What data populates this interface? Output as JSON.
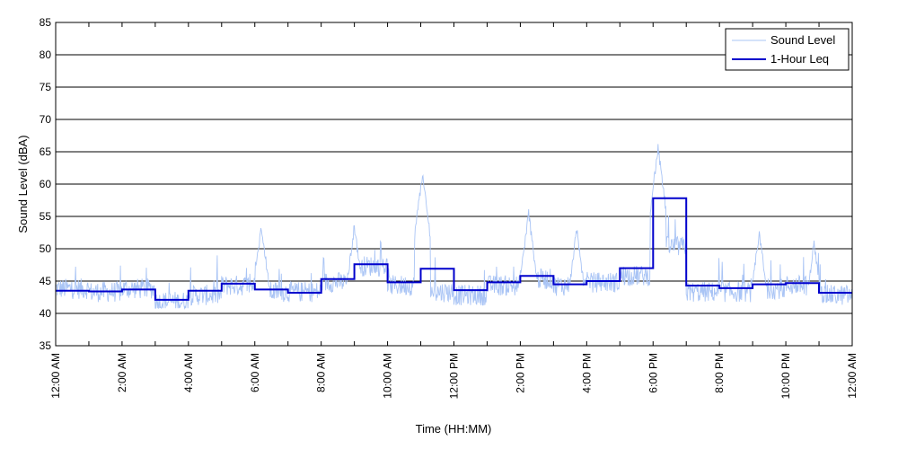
{
  "chart_data": {
    "type": "line",
    "xlabel": "Time (HH:MM)",
    "ylabel": "Sound Level (dBA)",
    "ylim": [
      35,
      85
    ],
    "y_ticks": [
      35,
      40,
      45,
      50,
      55,
      60,
      65,
      70,
      75,
      80,
      85
    ],
    "xlim_hours": [
      0,
      24
    ],
    "x_tick_labels": [
      "12:00 AM",
      "2:00 AM",
      "4:00 AM",
      "6:00 AM",
      "8:00 AM",
      "10:00 AM",
      "12:00 PM",
      "2:00 PM",
      "4:00 PM",
      "6:00 PM",
      "8:00 PM",
      "10:00 PM",
      "12:00 AM"
    ],
    "grid": "horizontal",
    "legend": "top-right",
    "series": [
      {
        "name": "Sound Level",
        "color": "#a9c4f5",
        "style": "thin-line",
        "hourly_baseline": [
          43.5,
          43.0,
          43.5,
          41.5,
          42.5,
          44.0,
          43.0,
          43.0,
          44.5,
          47.0,
          44.0,
          43.0,
          42.5,
          44.0,
          45.0,
          44.0,
          44.5,
          45.5,
          50.0,
          43.0,
          43.0,
          43.5,
          44.0,
          42.5
        ],
        "peaks": [
          {
            "hour": 6.2,
            "value": 53.5
          },
          {
            "hour": 9.0,
            "value": 53.5
          },
          {
            "hour": 11.05,
            "value": 61.5
          },
          {
            "hour": 14.25,
            "value": 55.5
          },
          {
            "hour": 15.7,
            "value": 53.0
          },
          {
            "hour": 18.15,
            "value": 65.5
          },
          {
            "hour": 21.2,
            "value": 52.5
          },
          {
            "hour": 22.85,
            "value": 51.0
          }
        ]
      },
      {
        "name": "1-Hour Leq",
        "color": "#0000cc",
        "style": "step",
        "values": [
          43.5,
          43.4,
          43.7,
          42.1,
          43.5,
          44.6,
          43.7,
          43.2,
          45.3,
          47.6,
          44.8,
          46.9,
          43.6,
          44.8,
          45.8,
          44.5,
          45.0,
          47.0,
          57.8,
          44.3,
          43.9,
          44.5,
          44.7,
          43.2
        ]
      }
    ]
  }
}
